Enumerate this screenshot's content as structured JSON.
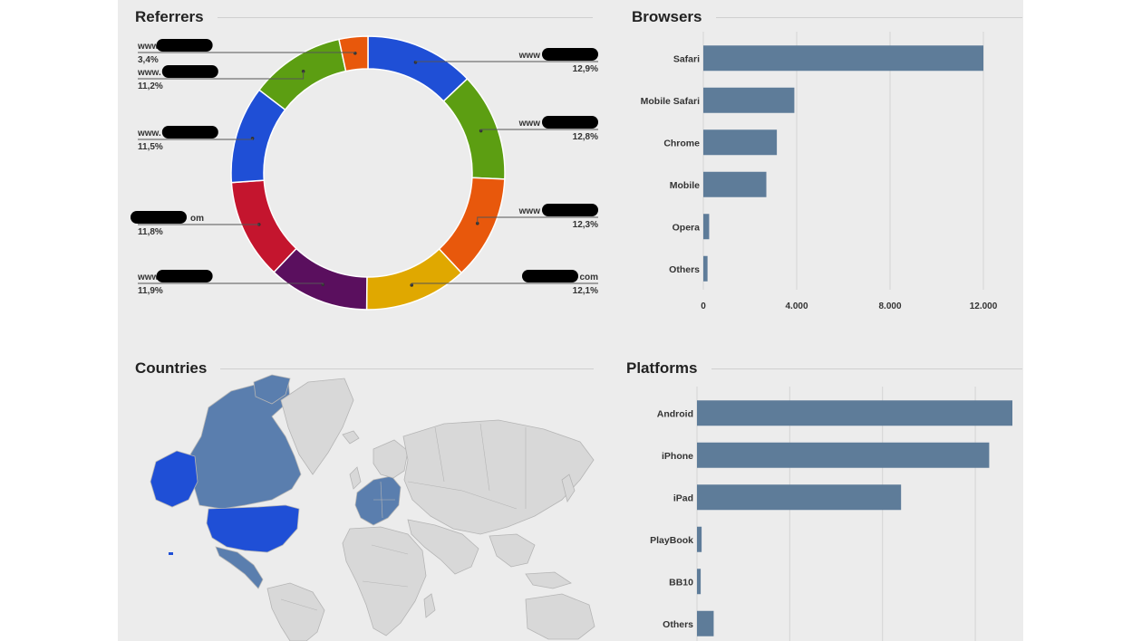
{
  "sections": {
    "referrers": "Referrers",
    "browsers": "Browsers",
    "countries": "Countries",
    "platforms": "Platforms"
  },
  "colors": {
    "bar": "#5e7c99",
    "grid": "#d4d4d4",
    "map_land": "#d8d8d8",
    "map_border": "#b5b5b5",
    "map_highlight_strong": "#1f4fd6",
    "map_highlight_light": "#5a7eae"
  },
  "chart_data": [
    {
      "type": "pie",
      "title": "Referrers",
      "donut": true,
      "labels": [
        {
          "prefix": "www",
          "suffix": "",
          "value_text": "12,9%"
        },
        {
          "prefix": "www",
          "suffix": "",
          "value_text": "12,8%"
        },
        {
          "prefix": "www",
          "suffix": "",
          "value_text": "12,3%"
        },
        {
          "prefix": "",
          "suffix": "com",
          "value_text": "12,1%"
        },
        {
          "prefix": "www",
          "suffix": "",
          "value_text": "11,9%"
        },
        {
          "prefix": "",
          "suffix": "om",
          "value_text": "11,8%"
        },
        {
          "prefix": "www.",
          "suffix": "",
          "value_text": "11,5%"
        },
        {
          "prefix": "www.",
          "suffix": "",
          "value_text": "11,2%"
        },
        {
          "prefix": "www",
          "suffix": "",
          "value_text": "3,4%"
        }
      ],
      "values": [
        12.9,
        12.8,
        12.3,
        12.1,
        11.9,
        11.8,
        11.5,
        11.2,
        3.4
      ],
      "colors": [
        "#1f4fd6",
        "#5c9e12",
        "#e8580c",
        "#e0a800",
        "#5a0f5e",
        "#c4152e",
        "#1f4fd6",
        "#5c9e12",
        "#e8580c"
      ]
    },
    {
      "type": "bar",
      "orientation": "horizontal",
      "title": "Browsers",
      "categories": [
        "Safari",
        "Mobile Safari",
        "Chrome",
        "Mobile",
        "Opera",
        "Others"
      ],
      "values": [
        12000,
        3900,
        3150,
        2700,
        250,
        180
      ],
      "xlim": [
        0,
        12000
      ],
      "ticks": [
        0,
        4000,
        8000,
        12000
      ],
      "tick_labels": [
        "0",
        "4.000",
        "8.000",
        "12.000"
      ],
      "grid": true
    },
    {
      "type": "bar",
      "orientation": "horizontal",
      "title": "Platforms",
      "categories": [
        "Android",
        "iPhone",
        "iPad",
        "PlayBook",
        "BB10",
        "Others"
      ],
      "values": [
        3400,
        3150,
        2200,
        50,
        40,
        180
      ],
      "xlim": [
        0,
        3400
      ],
      "grid": true
    }
  ]
}
